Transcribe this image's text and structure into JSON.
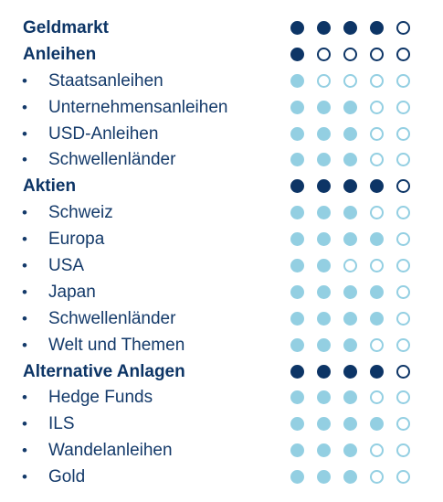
{
  "colors": {
    "category_text": "#0d3566",
    "sub_text": "#143a6a",
    "category_dot": "#0d3566",
    "sub_dot": "#93cfe2"
  },
  "bullet_symbol": "•",
  "max_rating": 5,
  "rows": [
    {
      "label": "Geldmarkt",
      "type": "category",
      "rating": 4
    },
    {
      "label": "Anleihen",
      "type": "category",
      "rating": 1
    },
    {
      "label": "Staatsanleihen",
      "type": "sub",
      "rating": 1
    },
    {
      "label": "Unternehmensanleihen",
      "type": "sub",
      "rating": 3
    },
    {
      "label": "USD-Anleihen",
      "type": "sub",
      "rating": 3
    },
    {
      "label": "Schwellenländer",
      "type": "sub",
      "rating": 3
    },
    {
      "label": "Aktien",
      "type": "category",
      "rating": 4
    },
    {
      "label": "Schweiz",
      "type": "sub",
      "rating": 3
    },
    {
      "label": "Europa",
      "type": "sub",
      "rating": 4
    },
    {
      "label": "USA",
      "type": "sub",
      "rating": 2
    },
    {
      "label": "Japan",
      "type": "sub",
      "rating": 4
    },
    {
      "label": "Schwellenländer",
      "type": "sub",
      "rating": 4
    },
    {
      "label": "Welt und Themen",
      "type": "sub",
      "rating": 3
    },
    {
      "label": "Alternative Anlagen",
      "type": "category",
      "rating": 4
    },
    {
      "label": "Hedge Funds",
      "type": "sub",
      "rating": 3
    },
    {
      "label": "ILS",
      "type": "sub",
      "rating": 4
    },
    {
      "label": "Wandelanleihen",
      "type": "sub",
      "rating": 3
    },
    {
      "label": "Gold",
      "type": "sub",
      "rating": 3
    }
  ]
}
